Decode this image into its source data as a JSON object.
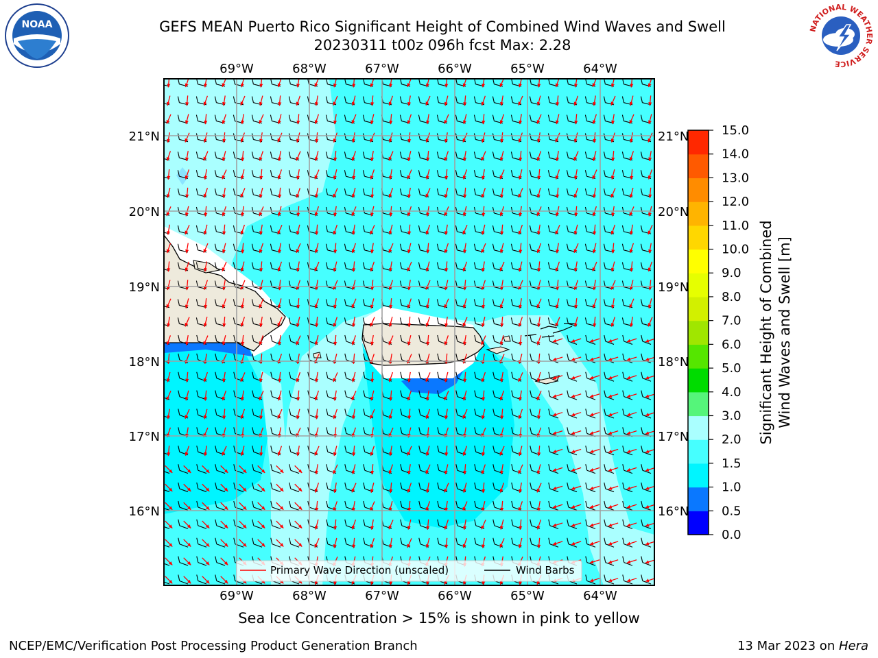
{
  "title_line1": "GEFS MEAN Puerto Rico Significant Height of Combined Wind Waves and Swell",
  "title_line2": "20230311 t00z 096h fcst   Max: 2.28",
  "lon_labels": [
    "69°W",
    "68°W",
    "67°W",
    "66°W",
    "65°W",
    "64°W"
  ],
  "lat_labels": [
    "21°N",
    "20°N",
    "19°N",
    "18°N",
    "17°N",
    "16°N"
  ],
  "colorbar": {
    "label_line1": "Significant Height of Combined",
    "label_line2": "Wind Waves and Swell [m]",
    "ticks": [
      "0.0",
      "0.5",
      "1.0",
      "1.5",
      "2.0",
      "3.0",
      "4.0",
      "5.0",
      "6.0",
      "7.0",
      "8.0",
      "9.0",
      "10.0",
      "11.0",
      "12.0",
      "13.0",
      "14.0",
      "15.0"
    ],
    "colors": [
      "#0000ff",
      "#0a78ff",
      "#00f5ff",
      "#46ffff",
      "#aaffff",
      "#55f57a",
      "#00dc00",
      "#55e600",
      "#a0e600",
      "#d2f000",
      "#e6ff00",
      "#ffff00",
      "#ffd700",
      "#ffb400",
      "#ff8c00",
      "#ff5a00",
      "#ff2800"
    ]
  },
  "legend": {
    "wave_label": "Primary Wave Direction (unscaled)",
    "barb_label": "Wind Barbs"
  },
  "colors": {
    "ocean_light": "#aaffff",
    "ocean_mid": "#46ffff",
    "ocean_cyan": "#00f5ff",
    "ocean_blue": "#0a78ff",
    "land": "#eeeadc",
    "wave_arrow": "#ff0000"
  },
  "logos": {
    "left": "NOAA",
    "right_text": "NATIONAL WEATHER SERVICE"
  },
  "caption": "Sea Ice Concentration > 15% is shown in pink to yellow",
  "footer_left": "NCEP/EMC/Verification Post Processing Product Generation Branch",
  "footer_date": "13 Mar 2023 on ",
  "footer_host": "Hera"
}
